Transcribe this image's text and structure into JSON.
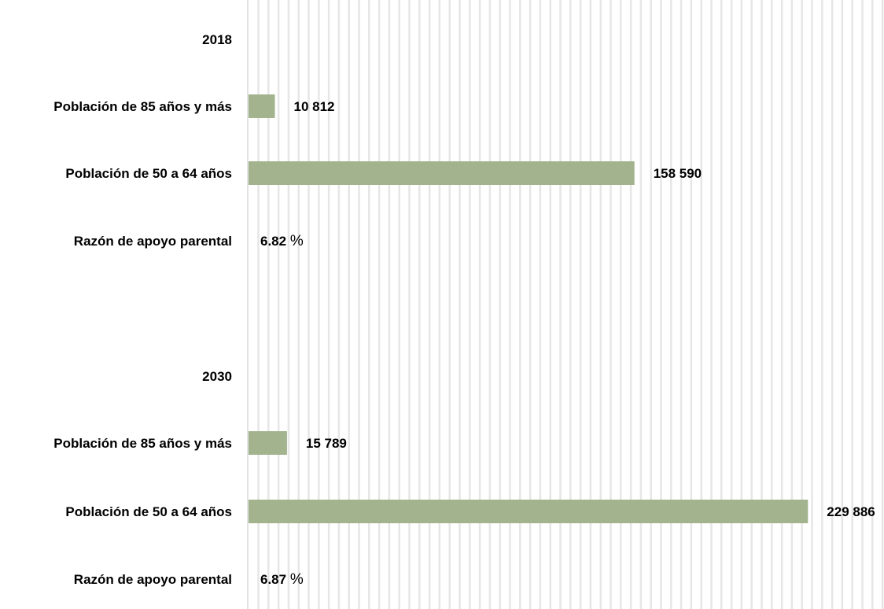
{
  "chart_data": {
    "type": "bar",
    "orientation": "horizontal",
    "title": "",
    "xlabel": "",
    "ylabel": "",
    "xlim": [
      0,
      234000
    ],
    "grid": "vertical",
    "legend": "none",
    "colors": {
      "bar": "#a2b38e",
      "grid": "#e6e6e6",
      "axis": "#d9d9d9",
      "text": "#000000"
    },
    "rows": [
      {
        "kind": "header",
        "label": "2018"
      },
      {
        "kind": "bar",
        "label": "Población de 85 años y más",
        "value": 10812,
        "value_label": "10 812"
      },
      {
        "kind": "bar",
        "label": "Población de 50 a 64 años",
        "value": 158590,
        "value_label": "158 590"
      },
      {
        "kind": "ratio",
        "label": "Razón de apoyo parental",
        "value": 6.82,
        "value_label": "6.82",
        "unit": "%"
      },
      {
        "kind": "spacer"
      },
      {
        "kind": "header",
        "label": "2030"
      },
      {
        "kind": "bar",
        "label": "Población de 85 años y más",
        "value": 15789,
        "value_label": "15 789"
      },
      {
        "kind": "bar",
        "label": "Población de 50 a 64 años",
        "value": 229886,
        "value_label": "229 886"
      },
      {
        "kind": "ratio",
        "label": "Razón de apoyo parental",
        "value": 6.87,
        "value_label": "6.87",
        "unit": "%"
      }
    ]
  }
}
